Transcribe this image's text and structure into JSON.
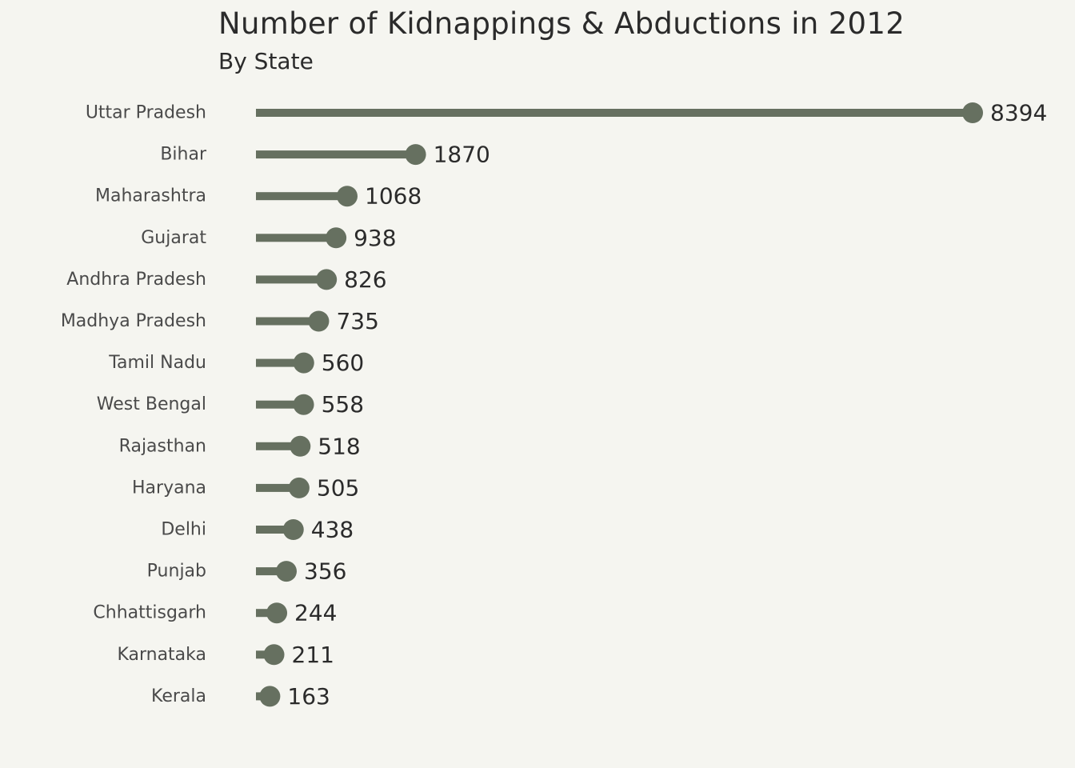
{
  "chart_data": {
    "type": "bar",
    "title": "Number of Kidnappings & Abductions in 2012",
    "subtitle": "By State",
    "xlabel": "",
    "ylabel": "",
    "categories": [
      "Uttar Pradesh",
      "Bihar",
      "Maharashtra",
      "Gujarat",
      "Andhra Pradesh",
      "Madhya Pradesh",
      "Tamil Nadu",
      "West Bengal",
      "Rajasthan",
      "Haryana",
      "Delhi",
      "Punjab",
      "Chhattisgarh",
      "Karnataka",
      "Kerala"
    ],
    "values": [
      8394,
      1870,
      1068,
      938,
      826,
      735,
      560,
      558,
      518,
      505,
      438,
      356,
      244,
      211,
      163
    ],
    "value_labels": [
      "8394",
      "1870",
      "1068",
      "938",
      "826",
      "735",
      "560",
      "558",
      "518",
      "505",
      "438",
      "356",
      "244",
      "211",
      "163"
    ],
    "orientation": "horizontal",
    "style": "lollipop",
    "xlim": [
      0,
      8394
    ],
    "grid": false,
    "legend": "none",
    "color": "#667060"
  }
}
